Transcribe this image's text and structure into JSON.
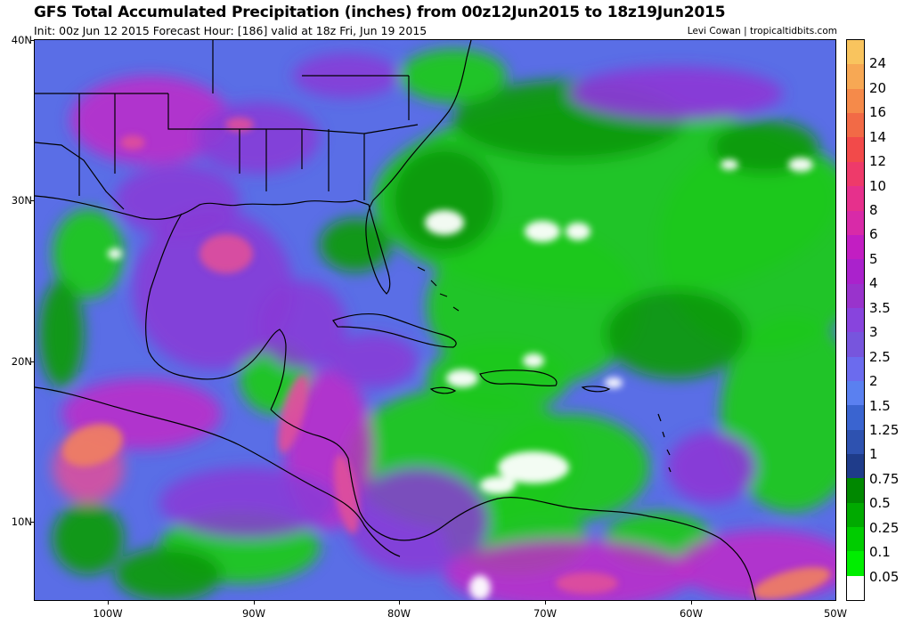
{
  "header": {
    "title": "GFS Total Accumulated Precipitation (inches) from 00z12Jun2015 to 18z19Jun2015",
    "subtitle": "Init: 00z Jun 12 2015   Forecast Hour: [186]   valid at 18z Fri, Jun 19 2015",
    "credit": "Levi Cowan | tropicaltidbits.com"
  },
  "axes": {
    "lat_labels": [
      "40N",
      "30N",
      "20N",
      "10N"
    ],
    "lon_labels": [
      "100W",
      "90W",
      "80W",
      "70W",
      "60W",
      "50W"
    ]
  },
  "colorbar": {
    "labels": [
      "0.05",
      "0.1",
      "0.25",
      "0.5",
      "0.75",
      "1",
      "1.25",
      "1.5",
      "2",
      "2.5",
      "3",
      "3.5",
      "4",
      "5",
      "6",
      "8",
      "10",
      "12",
      "14",
      "16",
      "20",
      "24"
    ],
    "colors": [
      "#ffffff",
      "#00ee00",
      "#00cc00",
      "#00aa00",
      "#008800",
      "#1f3c8a",
      "#2e52b0",
      "#3a64d0",
      "#5a80f0",
      "#6b6bee",
      "#7755dd",
      "#8844dd",
      "#9933cc",
      "#aa22cc",
      "#c21ec2",
      "#d82aa8",
      "#e6308c",
      "#ee3a6a",
      "#f24a4a",
      "#f26a46",
      "#f58a4a",
      "#f7a854",
      "#f9c45e"
    ]
  },
  "map": {
    "region": "Gulf of Mexico, Caribbean and western Atlantic",
    "colors": {
      "base": "#5a6ee6",
      "green": "#1ec81e",
      "lightgreen": "#30e030",
      "darkgreen": "#0a9a0a",
      "purple": "#8a3ad6",
      "magenta": "#c02ac8",
      "pink": "#e0509a",
      "orange": "#f08060",
      "white": "#ffffff",
      "navy": "#2c3c9a"
    }
  }
}
